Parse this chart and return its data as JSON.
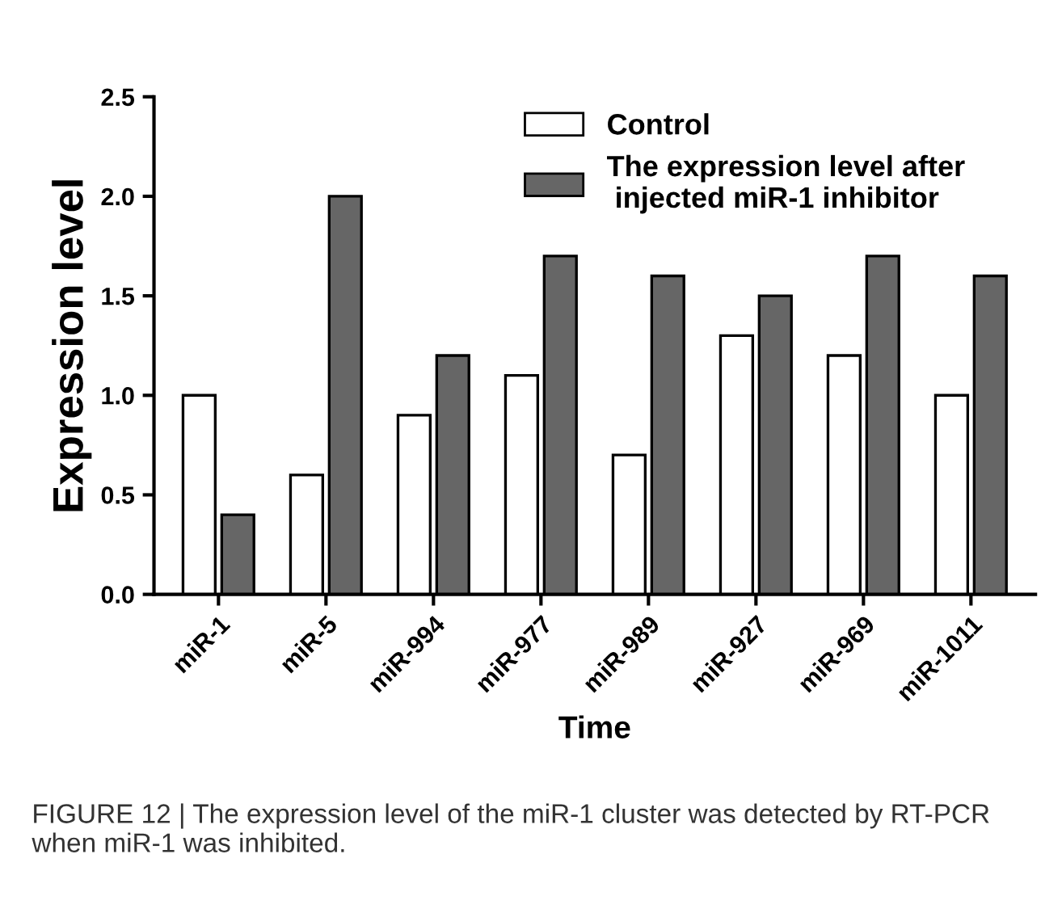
{
  "chart_data": {
    "type": "bar",
    "xlabel": "Time",
    "ylabel": "Expression level",
    "categories": [
      "miR-1",
      "miR-5",
      "miR-994",
      "miR-977",
      "miR-989",
      "miR-927",
      "miR-969",
      "miR-1011"
    ],
    "series": [
      {
        "name": "Control",
        "color": "#ffffff",
        "values": [
          1.0,
          0.6,
          0.9,
          1.1,
          0.7,
          1.3,
          1.2,
          1.0
        ]
      },
      {
        "name": "The expression level after\n injected miR-1 inhibitor",
        "color": "#666666",
        "values": [
          0.4,
          2.0,
          1.2,
          1.7,
          1.6,
          1.5,
          1.7,
          1.6
        ]
      }
    ],
    "ylim": [
      0,
      2.5
    ],
    "yticks": [
      {
        "value": 0,
        "label": "0.0"
      },
      {
        "value": 0.5,
        "label": "0.5"
      },
      {
        "value": 1,
        "label": "1.0"
      },
      {
        "value": 1.5,
        "label": "1.5"
      },
      {
        "value": 2,
        "label": "2.0"
      },
      {
        "value": 2.5,
        "label": "2.5"
      }
    ],
    "grid": false,
    "legend": "top right",
    "annotations": [
      "FIGURE 12 | The expression level of the miR-1 cluster was detected by RT-PCR when miR-1 was inhibited."
    ]
  }
}
